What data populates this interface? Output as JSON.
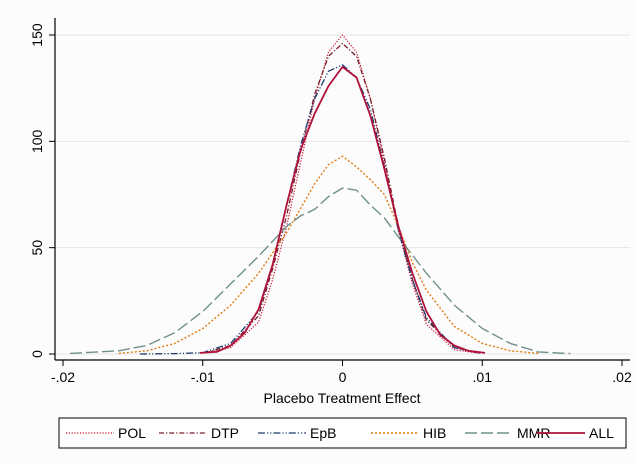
{
  "chart_data": {
    "type": "line",
    "title": "",
    "xlabel": "Placebo Treatment Effect",
    "ylabel": "",
    "xlim": [
      -0.02,
      0.02
    ],
    "ylim": [
      0,
      155
    ],
    "x_ticks": [
      {
        "value": -0.02,
        "label": "-.02"
      },
      {
        "value": -0.01,
        "label": "-.01"
      },
      {
        "value": 0,
        "label": "0"
      },
      {
        "value": 0.01,
        "label": ".01"
      },
      {
        "value": 0.02,
        "label": ".02"
      }
    ],
    "y_ticks": [
      {
        "value": 0,
        "label": "0"
      },
      {
        "value": 50,
        "label": "50"
      },
      {
        "value": 100,
        "label": "100"
      },
      {
        "value": 150,
        "label": "150"
      }
    ],
    "grid": "horizontal",
    "legend_position": "bottom",
    "series": [
      {
        "name": "POL",
        "color": "#c8102e",
        "dash": "1.2 1.6",
        "width": 1.2,
        "x": [
          -0.0098,
          -0.008,
          -0.006,
          -0.005,
          -0.004,
          -0.003,
          -0.002,
          -0.001,
          0,
          0.001,
          0.002,
          0.003,
          0.004,
          0.005,
          0.006,
          0.008,
          0.0098
        ],
        "y": [
          0.5,
          3,
          15,
          35,
          60,
          90,
          120,
          142,
          150,
          142,
          120,
          90,
          58,
          33,
          14,
          2,
          0.3
        ]
      },
      {
        "name": "DTP",
        "color": "#7a1f2b",
        "dash": "5 2 1.2 2",
        "width": 1.3,
        "x": [
          -0.0098,
          -0.008,
          -0.006,
          -0.005,
          -0.004,
          -0.003,
          -0.002,
          -0.001,
          0,
          0.001,
          0.002,
          0.003,
          0.004,
          0.005,
          0.006,
          0.008,
          0.0098
        ],
        "y": [
          0.5,
          4,
          18,
          40,
          65,
          95,
          122,
          140,
          146,
          140,
          120,
          92,
          60,
          35,
          16,
          3,
          0.4
        ]
      },
      {
        "name": "EpB",
        "color": "#1a3a70",
        "dash": "7 2 1.2 2 1.2 2",
        "width": 1.3,
        "x": [
          -0.0145,
          -0.012,
          -0.01,
          -0.008,
          -0.006,
          -0.005,
          -0.004,
          -0.003,
          -0.002,
          -0.001,
          0,
          0.001,
          0.002,
          0.003,
          0.004,
          0.005,
          0.006,
          0.008,
          0.0098
        ],
        "y": [
          0,
          0.2,
          0.6,
          5,
          20,
          42,
          70,
          98,
          120,
          133,
          136,
          130,
          115,
          88,
          58,
          35,
          17,
          3,
          0.4
        ]
      },
      {
        "name": "HIB",
        "color": "#e07b12",
        "dash": "2 2",
        "width": 1.4,
        "x": [
          -0.016,
          -0.014,
          -0.012,
          -0.01,
          -0.008,
          -0.006,
          -0.004,
          -0.002,
          -0.001,
          0,
          0.001,
          0.002,
          0.003,
          0.004,
          0.005,
          0.006,
          0.008,
          0.01,
          0.012,
          0.014
        ],
        "y": [
          0.3,
          1.5,
          5,
          12,
          23,
          38,
          57,
          80,
          89,
          93,
          88,
          82,
          75,
          60,
          43,
          30,
          13,
          5,
          1.5,
          0.3
        ]
      },
      {
        "name": "MMR",
        "color": "#6f8f8a",
        "dash": "12 4",
        "width": 1.4,
        "x": [
          -0.0195,
          -0.016,
          -0.014,
          -0.012,
          -0.01,
          -0.008,
          -0.006,
          -0.004,
          -0.003,
          -0.002,
          -0.001,
          0,
          0.001,
          0.002,
          0.003,
          0.004,
          0.006,
          0.008,
          0.01,
          0.012,
          0.014,
          0.0163
        ],
        "y": [
          0.3,
          1.5,
          4,
          10,
          20,
          33,
          46,
          60,
          65,
          68,
          74,
          78,
          77,
          70,
          64,
          55,
          38,
          23,
          12,
          5,
          1,
          0.2
        ]
      },
      {
        "name": "ALL",
        "color": "#b0103a",
        "dash": "",
        "width": 1.8,
        "x": [
          -0.0102,
          -0.009,
          -0.008,
          -0.007,
          -0.006,
          -0.005,
          -0.004,
          -0.003,
          -0.002,
          -0.001,
          0,
          0.001,
          0.002,
          0.003,
          0.004,
          0.005,
          0.006,
          0.007,
          0.008,
          0.009,
          0.0102
        ],
        "y": [
          0.5,
          1,
          4,
          10,
          21,
          42,
          70,
          96,
          113,
          126,
          135,
          130,
          112,
          87,
          60,
          38,
          20,
          9,
          4,
          1.5,
          0.5
        ]
      }
    ]
  }
}
